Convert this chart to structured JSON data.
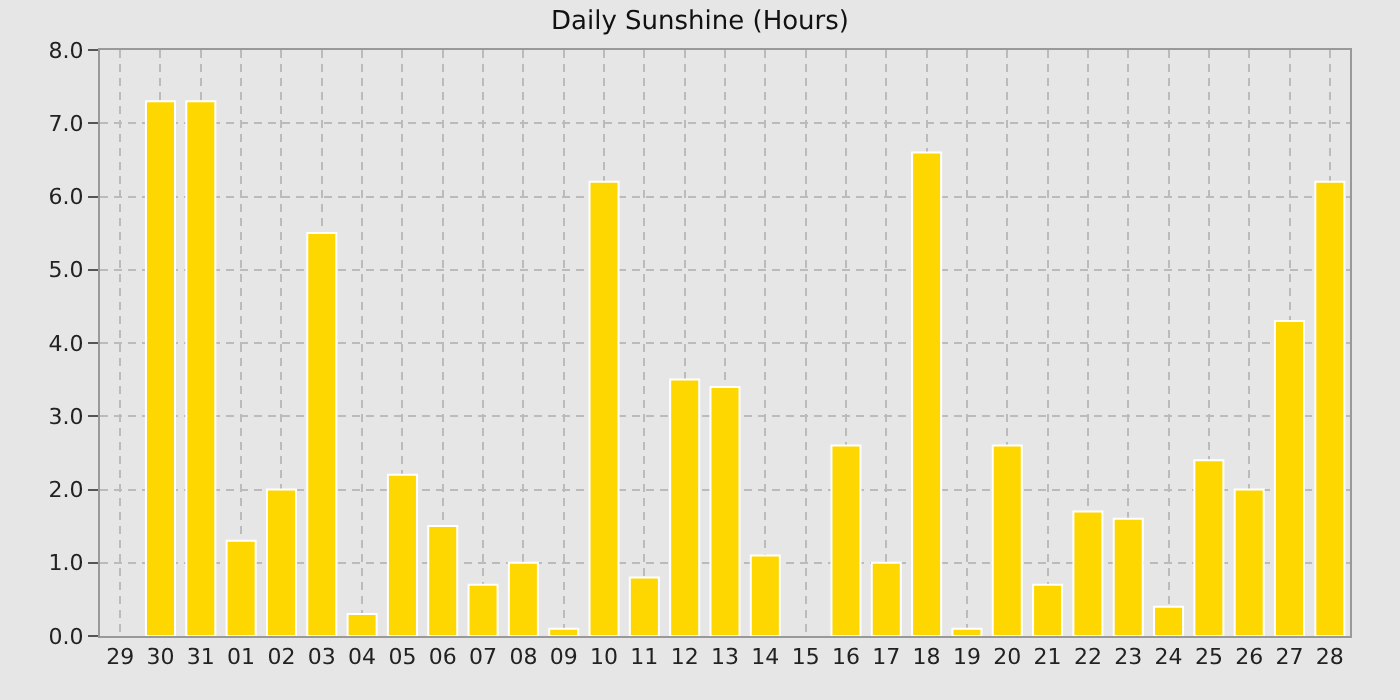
{
  "chart_data": {
    "type": "bar",
    "title": "Daily Sunshine (Hours)",
    "categories": [
      "29",
      "30",
      "31",
      "01",
      "02",
      "03",
      "04",
      "05",
      "06",
      "07",
      "08",
      "09",
      "10",
      "11",
      "12",
      "13",
      "14",
      "15",
      "16",
      "17",
      "18",
      "19",
      "20",
      "21",
      "22",
      "23",
      "24",
      "25",
      "26",
      "27",
      "28"
    ],
    "values": [
      null,
      7.3,
      7.3,
      1.3,
      2.0,
      5.5,
      0.3,
      2.2,
      1.5,
      0.7,
      1.0,
      0.1,
      6.2,
      0.8,
      3.5,
      3.4,
      1.1,
      null,
      2.6,
      1.0,
      6.6,
      0.1,
      2.6,
      0.7,
      1.7,
      1.6,
      0.4,
      2.4,
      2.0,
      4.3,
      6.2
    ],
    "color": "#ffd700",
    "ylim": [
      0,
      8
    ],
    "yticks": [
      {
        "value": 0,
        "label": "0.0"
      },
      {
        "value": 1,
        "label": "1.0"
      },
      {
        "value": 2,
        "label": "2.0"
      },
      {
        "value": 3,
        "label": "3.0"
      },
      {
        "value": 4,
        "label": "4.0"
      },
      {
        "value": 5,
        "label": "5.0"
      },
      {
        "value": 6,
        "label": "6.0"
      },
      {
        "value": 7,
        "label": "7.0"
      },
      {
        "value": 8,
        "label": "8.0"
      }
    ],
    "grid": true
  }
}
